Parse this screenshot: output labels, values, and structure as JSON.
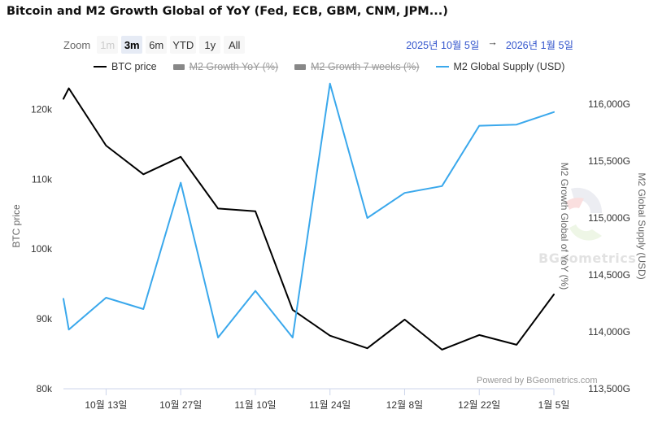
{
  "title": "Bitcoin and M2 Growth Global of YoY (Fed, ECB, GBM, CNM, JPM...)",
  "zoom": {
    "label": "Zoom",
    "buttons": [
      {
        "label": "1m",
        "state": "disabled"
      },
      {
        "label": "3m",
        "state": "active"
      },
      {
        "label": "6m",
        "state": "normal"
      },
      {
        "label": "YTD",
        "state": "normal"
      },
      {
        "label": "1y",
        "state": "normal"
      },
      {
        "label": "All",
        "state": "normal"
      }
    ]
  },
  "range": {
    "from": "2025년 10월 5일",
    "arrow": "→",
    "to": "2026년 1월 5일"
  },
  "legend": [
    {
      "label": "BTC price",
      "color": "#000000",
      "hidden": false,
      "kind": "line"
    },
    {
      "label": "M2 Growth YoY (%)",
      "color": "#888888",
      "hidden": true,
      "kind": "bar"
    },
    {
      "label": "M2 Growth 7 weeks (%)",
      "color": "#888888",
      "hidden": true,
      "kind": "bar"
    },
    {
      "label": "M2 Global Supply (USD)",
      "color": "#3aa8ec",
      "hidden": false,
      "kind": "line"
    }
  ],
  "watermark": "BGeometrics",
  "credits": "Powered by BGeometrics.com",
  "chart_data": {
    "type": "line",
    "x_tick_labels": [
      "10월 13일",
      "10월 27일",
      "11월 10일",
      "11월 24일",
      "12월 8일",
      "12월 22일",
      "1월 5일"
    ],
    "x_tick_days": [
      8,
      22,
      36,
      50,
      64,
      78,
      92
    ],
    "x_range_days": [
      0,
      92
    ],
    "axes": {
      "left": {
        "title": "BTC price",
        "ticks": [
          "80k",
          "90k",
          "100k",
          "110k",
          "120k"
        ],
        "tick_values": [
          80000,
          90000,
          100000,
          110000,
          120000
        ],
        "range": [
          80000,
          124000
        ]
      },
      "right_inner": {
        "title": "M2 Growth Global of YoY (%)"
      },
      "right_outer": {
        "title": "M2 Global Supply (USD)",
        "ticks": [
          "113,500G",
          "114,000G",
          "114,500G",
          "115,000G",
          "115,500G",
          "116,000G"
        ],
        "tick_values": [
          113500,
          114000,
          114500,
          115000,
          115500,
          116000
        ],
        "range": [
          113500,
          116200
        ]
      }
    },
    "series": [
      {
        "name": "BTC price",
        "axis": "left",
        "color": "#000000",
        "x": [
          0,
          1,
          8,
          15,
          22,
          29,
          36,
          43,
          50,
          57,
          64,
          71,
          78,
          85,
          92
        ],
        "y": [
          121500,
          123000,
          114800,
          110700,
          113200,
          105800,
          105400,
          91300,
          87600,
          85800,
          89900,
          85600,
          87700,
          86300,
          93500
        ]
      },
      {
        "name": "M2 Global Supply (USD)",
        "axis": "right_outer",
        "color": "#3aa8ec",
        "x": [
          0,
          1,
          8,
          15,
          22,
          29,
          36,
          43,
          50,
          57,
          64,
          71,
          78,
          85,
          92
        ],
        "y": [
          114290,
          114020,
          114300,
          114200,
          115310,
          113950,
          114360,
          113950,
          116180,
          115000,
          115220,
          115280,
          115810,
          115820,
          115930
        ]
      }
    ]
  }
}
